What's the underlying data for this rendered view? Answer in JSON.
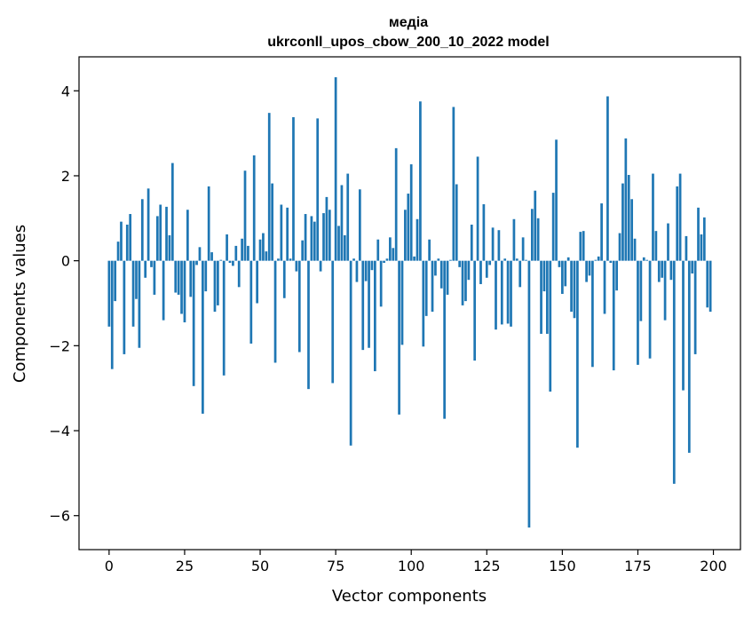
{
  "chart_data": {
    "type": "bar",
    "title": "медіа",
    "subtitle": "ukrconll_upos_cbow_200_10_2022 model",
    "xlabel": "Vector components",
    "ylabel": "Components values",
    "xlim": [
      -9.95,
      208.95
    ],
    "ylim": [
      -6.8,
      4.8
    ],
    "xticks": [
      0,
      25,
      50,
      75,
      100,
      125,
      150,
      175,
      200
    ],
    "yticks": [
      -6,
      -4,
      -2,
      0,
      2,
      4
    ],
    "xtick_labels": [
      "0",
      "25",
      "50",
      "75",
      "100",
      "125",
      "150",
      "175",
      "200"
    ],
    "ytick_labels": [
      "−6",
      "−4",
      "−2",
      "0",
      "2",
      "4"
    ],
    "grid": false,
    "bar_color": "#1f77b4",
    "values": [
      -1.55,
      -2.55,
      -0.95,
      0.45,
      0.92,
      -2.2,
      0.85,
      1.1,
      -1.55,
      -0.9,
      -2.05,
      1.45,
      -0.4,
      1.7,
      -0.15,
      -0.8,
      1.05,
      1.32,
      -1.4,
      1.27,
      0.6,
      2.3,
      -0.75,
      -0.8,
      -1.25,
      -1.45,
      1.2,
      -0.85,
      -2.95,
      -0.1,
      0.32,
      -3.6,
      -0.72,
      1.75,
      0.2,
      -1.2,
      -1.05,
      0.02,
      -2.7,
      0.62,
      -0.05,
      -0.12,
      0.35,
      -0.62,
      0.52,
      2.12,
      0.35,
      -1.95,
      2.48,
      -1.0,
      0.5,
      0.65,
      0.22,
      3.48,
      1.82,
      -2.4,
      0.05,
      1.32,
      -0.88,
      1.25,
      0.05,
      3.38,
      -0.25,
      -2.15,
      0.48,
      1.1,
      -3.02,
      1.05,
      0.92,
      3.35,
      -0.25,
      1.12,
      1.5,
      1.2,
      -2.88,
      4.32,
      0.82,
      1.78,
      0.6,
      2.05,
      -4.35,
      0.05,
      -0.5,
      1.68,
      -2.1,
      -0.48,
      -2.05,
      -0.22,
      -2.6,
      0.5,
      -1.08,
      -0.05,
      0.05,
      0.55,
      0.3,
      2.65,
      -3.62,
      -1.98,
      1.2,
      1.58,
      2.27,
      0.1,
      0.98,
      3.75,
      -2.02,
      -1.3,
      0.5,
      -1.2,
      -0.35,
      0.05,
      -0.65,
      -3.72,
      -0.8,
      0.02,
      3.62,
      1.8,
      -0.15,
      -1.05,
      -0.95,
      -0.45,
      0.85,
      -2.35,
      2.45,
      -0.55,
      1.33,
      -0.4,
      -0.1,
      0.78,
      -1.62,
      0.72,
      -1.5,
      0.05,
      -1.48,
      -1.55,
      0.98,
      0.05,
      -0.62,
      0.55,
      0.02,
      -6.28,
      1.22,
      1.65,
      1.0,
      -1.72,
      -0.72,
      -1.72,
      -3.08,
      1.6,
      2.85,
      -0.15,
      -0.78,
      -0.6,
      0.08,
      -1.2,
      -1.35,
      -4.4,
      0.68,
      0.7,
      -0.5,
      -0.35,
      -2.5,
      0.02,
      0.1,
      1.35,
      -1.25,
      3.87,
      -0.05,
      -2.58,
      -0.7,
      0.65,
      1.82,
      2.88,
      2.02,
      1.45,
      0.52,
      -2.45,
      -1.42,
      0.08,
      0.02,
      -2.3,
      2.05,
      0.7,
      -0.5,
      -0.4,
      -1.4,
      0.88,
      -0.45,
      -5.25,
      1.75,
      2.05,
      -3.05,
      0.58,
      -4.52,
      -0.3,
      -2.2,
      1.25,
      0.62,
      1.02,
      -1.1,
      -1.2
    ]
  }
}
